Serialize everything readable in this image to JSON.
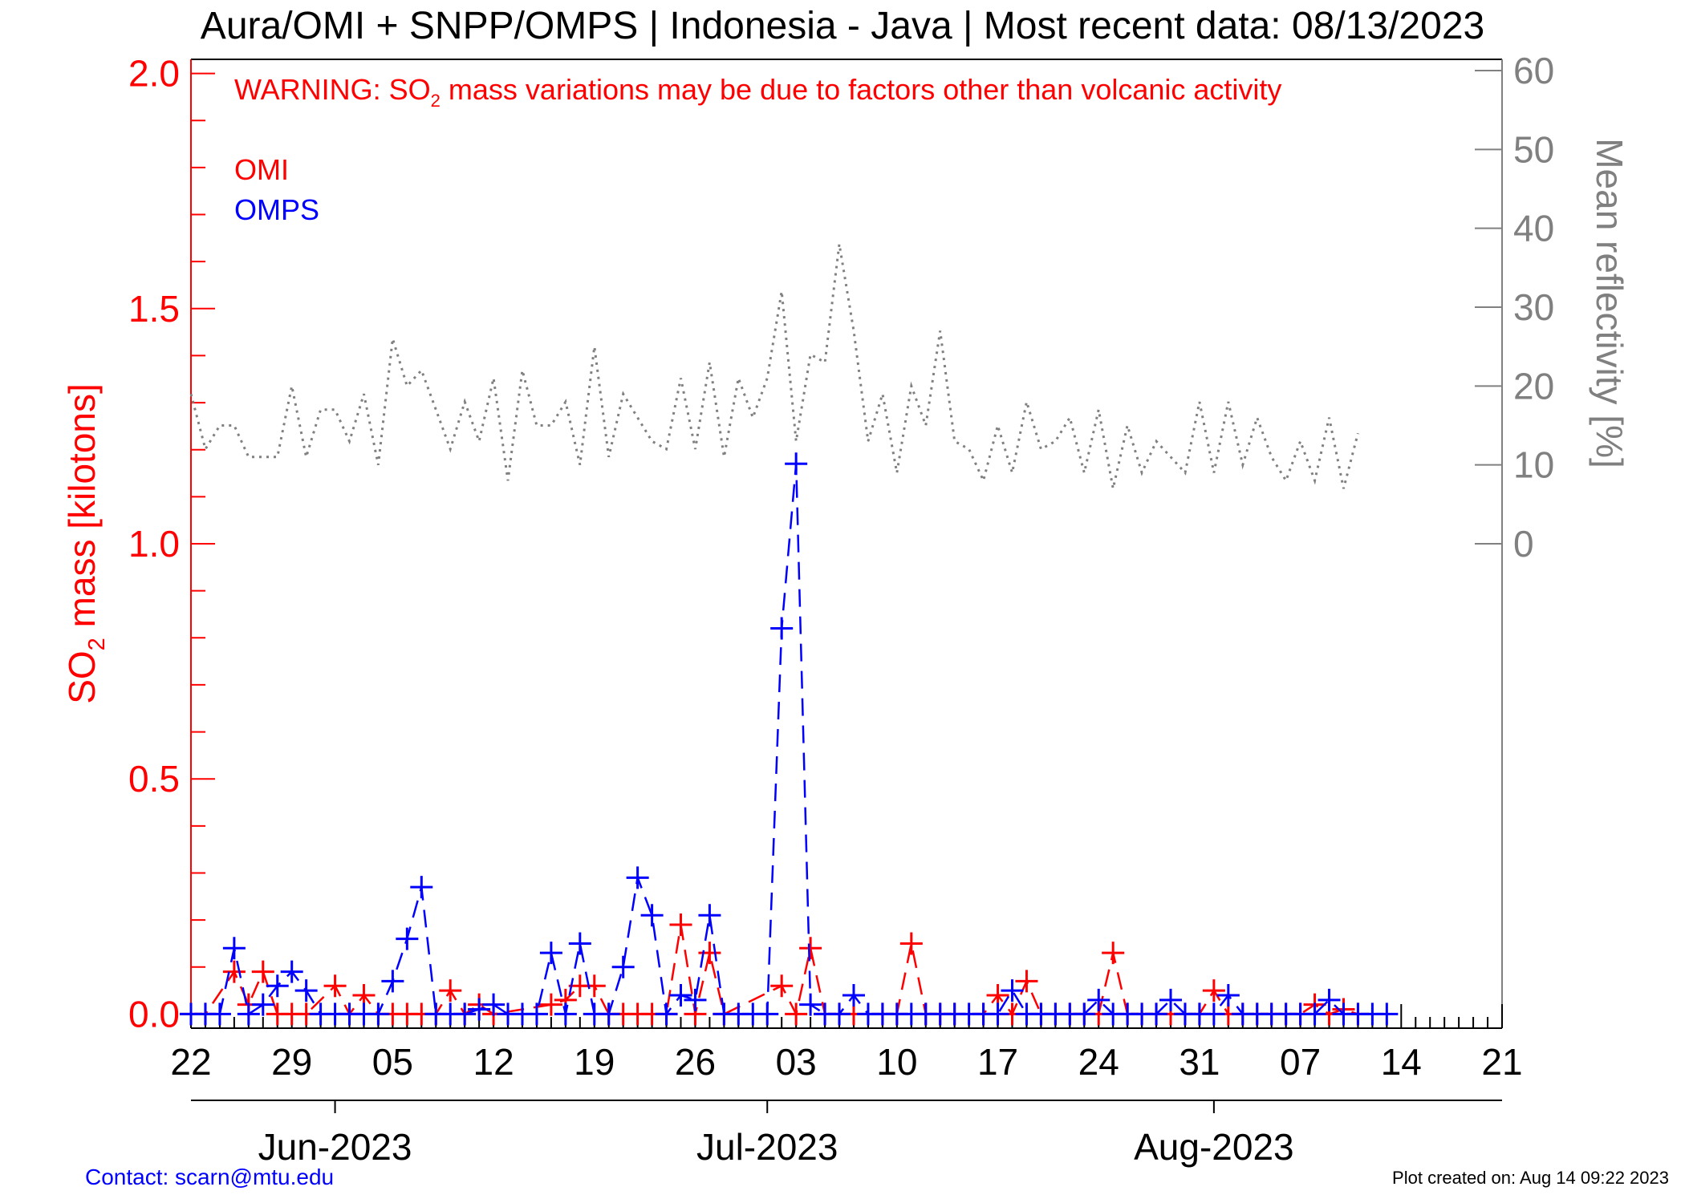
{
  "chart_data": {
    "type": "line",
    "title": "Aura/OMI + SNPP/OMPS | Indonesia - Java | Most recent data: 08/13/2023",
    "warning": {
      "prefix": "WARNING: SO",
      "subscript": "2",
      "suffix": " mass variations may be due to factors other than volcanic activity"
    },
    "ylabel_left": {
      "prefix": "SO",
      "subscript": "2",
      "suffix": " mass [kilotons]"
    },
    "ylabel_right": "Mean reflectivity [%]",
    "y_left_range": [
      -0.03,
      2.03
    ],
    "y_left_ticks": [
      "0.0",
      "0.5",
      "1.0",
      "1.5",
      "2.0"
    ],
    "y_right_range": [
      0,
      60
    ],
    "y_right_ticks": [
      "0",
      "10",
      "20",
      "30",
      "40",
      "50",
      "60"
    ],
    "x_range": [
      "2023-05-22",
      "2023-08-21"
    ],
    "x_tick_labels": [
      "22",
      "29",
      "05",
      "12",
      "19",
      "26",
      "03",
      "10",
      "17",
      "24",
      "31",
      "07",
      "14",
      "21"
    ],
    "month_labels": [
      {
        "label": "Jun-2023",
        "date": "2023-06-01"
      },
      {
        "label": "Jul-2023",
        "date": "2023-07-01"
      },
      {
        "label": "Aug-2023",
        "date": "2023-08-01"
      }
    ],
    "legend": [
      "OMI",
      "OMPS"
    ],
    "colors": {
      "omi": "#ff0000",
      "omps": "#0000ff",
      "reflectivity": "#808080",
      "left_axis": "#ff0000",
      "right_axis": "#808080"
    },
    "series": [
      {
        "name": "OMI",
        "style": "dashed-plus",
        "points": [
          [
            "2023-05-22",
            0.0
          ],
          [
            "2023-05-23",
            0.0
          ],
          [
            "2023-05-25",
            0.09
          ],
          [
            "2023-05-26",
            0.02
          ],
          [
            "2023-05-27",
            0.09
          ],
          [
            "2023-05-28",
            0.0
          ],
          [
            "2023-05-29",
            0.0
          ],
          [
            "2023-05-30",
            0.0
          ],
          [
            "2023-06-01",
            0.06
          ],
          [
            "2023-06-02",
            0.0
          ],
          [
            "2023-06-03",
            0.04
          ],
          [
            "2023-06-04",
            0.0
          ],
          [
            "2023-06-05",
            0.0
          ],
          [
            "2023-06-06",
            0.0
          ],
          [
            "2023-06-07",
            0.0
          ],
          [
            "2023-06-08",
            0.0
          ],
          [
            "2023-06-09",
            0.05
          ],
          [
            "2023-06-10",
            0.0
          ],
          [
            "2023-06-11",
            0.02
          ],
          [
            "2023-06-12",
            0.0
          ],
          [
            "2023-06-16",
            0.02
          ],
          [
            "2023-06-17",
            0.03
          ],
          [
            "2023-06-18",
            0.06
          ],
          [
            "2023-06-19",
            0.06
          ],
          [
            "2023-06-20",
            0.0
          ],
          [
            "2023-06-21",
            0.0
          ],
          [
            "2023-06-22",
            0.0
          ],
          [
            "2023-06-23",
            0.0
          ],
          [
            "2023-06-24",
            0.0
          ],
          [
            "2023-06-25",
            0.19
          ],
          [
            "2023-06-26",
            0.0
          ],
          [
            "2023-06-27",
            0.13
          ],
          [
            "2023-06-28",
            0.0
          ],
          [
            "2023-07-02",
            0.06
          ],
          [
            "2023-07-03",
            0.0
          ],
          [
            "2023-07-04",
            0.14
          ],
          [
            "2023-07-05",
            0.0
          ],
          [
            "2023-07-06",
            0.0
          ],
          [
            "2023-07-07",
            0.0
          ],
          [
            "2023-07-09",
            0.0
          ],
          [
            "2023-07-10",
            0.0
          ],
          [
            "2023-07-11",
            0.15
          ],
          [
            "2023-07-12",
            0.0
          ],
          [
            "2023-07-13",
            0.0
          ],
          [
            "2023-07-14",
            0.0
          ],
          [
            "2023-07-16",
            0.0
          ],
          [
            "2023-07-17",
            0.04
          ],
          [
            "2023-07-18",
            0.0
          ],
          [
            "2023-07-19",
            0.07
          ],
          [
            "2023-07-20",
            0.0
          ],
          [
            "2023-07-21",
            0.0
          ],
          [
            "2023-07-22",
            0.0
          ],
          [
            "2023-07-23",
            0.0
          ],
          [
            "2023-07-24",
            0.0
          ],
          [
            "2023-07-25",
            0.13
          ],
          [
            "2023-07-26",
            0.0
          ],
          [
            "2023-07-27",
            0.0
          ],
          [
            "2023-07-28",
            0.0
          ],
          [
            "2023-07-29",
            0.0
          ],
          [
            "2023-07-30",
            0.0
          ],
          [
            "2023-07-31",
            0.0
          ],
          [
            "2023-08-01",
            0.05
          ],
          [
            "2023-08-02",
            0.0
          ],
          [
            "2023-08-03",
            0.0
          ],
          [
            "2023-08-04",
            0.0
          ],
          [
            "2023-08-05",
            0.0
          ],
          [
            "2023-08-06",
            0.0
          ],
          [
            "2023-08-07",
            0.0
          ],
          [
            "2023-08-08",
            0.02
          ],
          [
            "2023-08-09",
            0.0
          ],
          [
            "2023-08-10",
            0.01
          ],
          [
            "2023-08-11",
            0.0
          ]
        ]
      },
      {
        "name": "OMPS",
        "style": "dashed-plus",
        "points": [
          [
            "2023-05-22",
            0.0
          ],
          [
            "2023-05-23",
            0.0
          ],
          [
            "2023-05-24",
            0.0
          ],
          [
            "2023-05-25",
            0.14
          ],
          [
            "2023-05-26",
            0.0
          ],
          [
            "2023-05-27",
            0.02
          ],
          [
            "2023-05-28",
            0.06
          ],
          [
            "2023-05-29",
            0.09
          ],
          [
            "2023-05-30",
            0.05
          ],
          [
            "2023-05-31",
            0.0
          ],
          [
            "2023-06-01",
            0.0
          ],
          [
            "2023-06-02",
            0.0
          ],
          [
            "2023-06-03",
            0.0
          ],
          [
            "2023-06-04",
            0.0
          ],
          [
            "2023-06-05",
            0.07
          ],
          [
            "2023-06-06",
            0.16
          ],
          [
            "2023-06-07",
            0.27
          ],
          [
            "2023-06-08",
            0.0
          ],
          [
            "2023-06-09",
            0.0
          ],
          [
            "2023-06-10",
            0.0
          ],
          [
            "2023-06-11",
            0.01
          ],
          [
            "2023-06-12",
            0.02
          ],
          [
            "2023-06-13",
            0.0
          ],
          [
            "2023-06-14",
            0.0
          ],
          [
            "2023-06-15",
            0.0
          ],
          [
            "2023-06-16",
            0.13
          ],
          [
            "2023-06-17",
            0.0
          ],
          [
            "2023-06-18",
            0.15
          ],
          [
            "2023-06-19",
            0.0
          ],
          [
            "2023-06-20",
            0.0
          ],
          [
            "2023-06-21",
            0.1
          ],
          [
            "2023-06-22",
            0.29
          ],
          [
            "2023-06-23",
            0.21
          ],
          [
            "2023-06-24",
            0.0
          ],
          [
            "2023-06-25",
            0.04
          ],
          [
            "2023-06-26",
            0.03
          ],
          [
            "2023-06-27",
            0.21
          ],
          [
            "2023-06-28",
            0.0
          ],
          [
            "2023-06-29",
            0.0
          ],
          [
            "2023-06-30",
            0.0
          ],
          [
            "2023-07-01",
            0.0
          ],
          [
            "2023-07-02",
            0.82
          ],
          [
            "2023-07-03",
            1.17
          ],
          [
            "2023-07-04",
            0.02
          ],
          [
            "2023-07-05",
            0.0
          ],
          [
            "2023-07-06",
            0.0
          ],
          [
            "2023-07-07",
            0.04
          ],
          [
            "2023-07-08",
            0.0
          ],
          [
            "2023-07-09",
            0.0
          ],
          [
            "2023-07-10",
            0.0
          ],
          [
            "2023-07-11",
            0.0
          ],
          [
            "2023-07-12",
            0.0
          ],
          [
            "2023-07-13",
            0.0
          ],
          [
            "2023-07-14",
            0.0
          ],
          [
            "2023-07-15",
            0.0
          ],
          [
            "2023-07-16",
            0.0
          ],
          [
            "2023-07-17",
            0.0
          ],
          [
            "2023-07-18",
            0.05
          ],
          [
            "2023-07-19",
            0.0
          ],
          [
            "2023-07-20",
            0.0
          ],
          [
            "2023-07-21",
            0.0
          ],
          [
            "2023-07-22",
            0.0
          ],
          [
            "2023-07-23",
            0.0
          ],
          [
            "2023-07-24",
            0.03
          ],
          [
            "2023-07-25",
            0.0
          ],
          [
            "2023-07-26",
            0.0
          ],
          [
            "2023-07-27",
            0.0
          ],
          [
            "2023-07-28",
            0.0
          ],
          [
            "2023-07-29",
            0.03
          ],
          [
            "2023-07-30",
            0.0
          ],
          [
            "2023-07-31",
            0.0
          ],
          [
            "2023-08-01",
            0.0
          ],
          [
            "2023-08-02",
            0.04
          ],
          [
            "2023-08-03",
            0.0
          ],
          [
            "2023-08-04",
            0.0
          ],
          [
            "2023-08-05",
            0.0
          ],
          [
            "2023-08-06",
            0.0
          ],
          [
            "2023-08-07",
            0.0
          ],
          [
            "2023-08-08",
            0.0
          ],
          [
            "2023-08-09",
            0.03
          ],
          [
            "2023-08-10",
            0.0
          ],
          [
            "2023-08-11",
            0.0
          ],
          [
            "2023-08-12",
            0.0
          ],
          [
            "2023-08-13",
            0.0
          ]
        ]
      },
      {
        "name": "Mean reflectivity",
        "axis": "right",
        "style": "dotted",
        "points": [
          [
            "2023-05-22",
            19
          ],
          [
            "2023-05-23",
            12
          ],
          [
            "2023-05-24",
            15
          ],
          [
            "2023-05-25",
            15
          ],
          [
            "2023-05-26",
            11
          ],
          [
            "2023-05-27",
            11
          ],
          [
            "2023-05-28",
            11
          ],
          [
            "2023-05-29",
            20
          ],
          [
            "2023-05-30",
            11
          ],
          [
            "2023-05-31",
            17
          ],
          [
            "2023-06-01",
            17
          ],
          [
            "2023-06-02",
            13
          ],
          [
            "2023-06-03",
            19
          ],
          [
            "2023-06-04",
            10
          ],
          [
            "2023-06-05",
            26
          ],
          [
            "2023-06-06",
            20
          ],
          [
            "2023-06-07",
            22
          ],
          [
            "2023-06-08",
            17
          ],
          [
            "2023-06-09",
            12
          ],
          [
            "2023-06-10",
            18
          ],
          [
            "2023-06-11",
            13
          ],
          [
            "2023-06-12",
            21
          ],
          [
            "2023-06-13",
            8
          ],
          [
            "2023-06-14",
            22
          ],
          [
            "2023-06-15",
            15
          ],
          [
            "2023-06-16",
            15
          ],
          [
            "2023-06-17",
            18
          ],
          [
            "2023-06-18",
            10
          ],
          [
            "2023-06-19",
            25
          ],
          [
            "2023-06-20",
            11
          ],
          [
            "2023-06-21",
            19
          ],
          [
            "2023-06-22",
            16
          ],
          [
            "2023-06-23",
            13
          ],
          [
            "2023-06-24",
            12
          ],
          [
            "2023-06-25",
            21
          ],
          [
            "2023-06-26",
            12
          ],
          [
            "2023-06-27",
            23
          ],
          [
            "2023-06-28",
            11
          ],
          [
            "2023-06-29",
            21
          ],
          [
            "2023-06-30",
            16
          ],
          [
            "2023-07-01",
            21
          ],
          [
            "2023-07-02",
            32
          ],
          [
            "2023-07-03",
            13
          ],
          [
            "2023-07-04",
            24
          ],
          [
            "2023-07-05",
            23
          ],
          [
            "2023-07-06",
            38
          ],
          [
            "2023-07-07",
            27
          ],
          [
            "2023-07-08",
            13
          ],
          [
            "2023-07-09",
            19
          ],
          [
            "2023-07-10",
            9
          ],
          [
            "2023-07-11",
            20
          ],
          [
            "2023-07-12",
            15
          ],
          [
            "2023-07-13",
            27
          ],
          [
            "2023-07-14",
            13
          ],
          [
            "2023-07-15",
            12
          ],
          [
            "2023-07-16",
            8
          ],
          [
            "2023-07-17",
            15
          ],
          [
            "2023-07-18",
            9
          ],
          [
            "2023-07-19",
            18
          ],
          [
            "2023-07-20",
            12
          ],
          [
            "2023-07-21",
            13
          ],
          [
            "2023-07-22",
            16
          ],
          [
            "2023-07-23",
            9
          ],
          [
            "2023-07-24",
            17
          ],
          [
            "2023-07-25",
            7
          ],
          [
            "2023-07-26",
            15
          ],
          [
            "2023-07-27",
            9
          ],
          [
            "2023-07-28",
            13
          ],
          [
            "2023-07-29",
            11
          ],
          [
            "2023-07-30",
            9
          ],
          [
            "2023-07-31",
            18
          ],
          [
            "2023-08-01",
            9
          ],
          [
            "2023-08-02",
            18
          ],
          [
            "2023-08-03",
            10
          ],
          [
            "2023-08-04",
            16
          ],
          [
            "2023-08-05",
            11
          ],
          [
            "2023-08-06",
            8
          ],
          [
            "2023-08-07",
            13
          ],
          [
            "2023-08-08",
            8
          ],
          [
            "2023-08-09",
            16
          ],
          [
            "2023-08-10",
            7
          ],
          [
            "2023-08-11",
            14
          ]
        ]
      }
    ]
  },
  "footer": {
    "contact": "Contact: scarn@mtu.edu",
    "created": "Plot created on: Aug 14 09:22 2023"
  }
}
